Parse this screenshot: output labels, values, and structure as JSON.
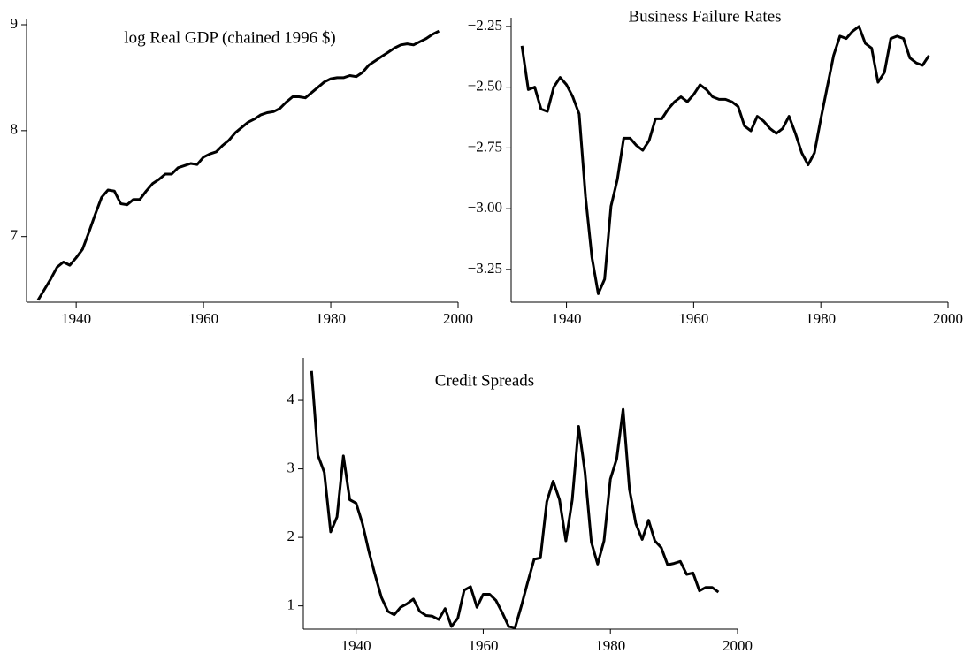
{
  "chart_data": [
    {
      "type": "line",
      "title": "log Real GDP (chained 1996 $)",
      "color": "#000000",
      "xlim": [
        1932.2,
        2000
      ],
      "ylim": [
        6.38,
        9.05
      ],
      "xticks": [
        1940,
        1960,
        1980,
        2000
      ],
      "yticks": [
        7,
        8,
        9
      ],
      "x": [
        1934,
        1935,
        1936,
        1937,
        1938,
        1939,
        1940,
        1941,
        1942,
        1943,
        1944,
        1945,
        1946,
        1947,
        1948,
        1949,
        1950,
        1951,
        1952,
        1953,
        1954,
        1955,
        1956,
        1957,
        1958,
        1959,
        1960,
        1961,
        1962,
        1963,
        1964,
        1965,
        1966,
        1967,
        1968,
        1969,
        1970,
        1971,
        1972,
        1973,
        1974,
        1975,
        1976,
        1977,
        1978,
        1979,
        1980,
        1981,
        1982,
        1983,
        1984,
        1985,
        1986,
        1987,
        1988,
        1989,
        1990,
        1991,
        1992,
        1993,
        1994,
        1995,
        1996,
        1997
      ],
      "values": [
        6.4,
        6.5,
        6.6,
        6.71,
        6.76,
        6.73,
        6.8,
        6.88,
        7.04,
        7.21,
        7.37,
        7.44,
        7.43,
        7.31,
        7.3,
        7.35,
        7.35,
        7.43,
        7.5,
        7.54,
        7.59,
        7.59,
        7.65,
        7.67,
        7.69,
        7.68,
        7.75,
        7.78,
        7.8,
        7.86,
        7.91,
        7.98,
        8.03,
        8.08,
        8.11,
        8.15,
        8.17,
        8.18,
        8.21,
        8.27,
        8.32,
        8.32,
        8.31,
        8.36,
        8.41,
        8.46,
        8.49,
        8.5,
        8.5,
        8.52,
        8.51,
        8.55,
        8.62,
        8.66,
        8.7,
        8.74,
        8.78,
        8.81,
        8.82,
        8.81,
        8.84,
        8.87,
        8.91,
        8.94
      ]
    },
    {
      "type": "line",
      "title": "Business Failure Rates",
      "color": "#000000",
      "xlim": [
        1931.3,
        2000
      ],
      "ylim": [
        -3.385,
        -2.214
      ],
      "xticks": [
        1940,
        1960,
        1980,
        2000
      ],
      "yticks": [
        {
          "value": -2.25,
          "label": "−2.25"
        },
        {
          "value": -2.5,
          "label": "−2.50"
        },
        {
          "value": -2.75,
          "label": "−2.75"
        },
        {
          "value": -3,
          "label": "−3.00"
        },
        {
          "value": -3.25,
          "label": "−3.25"
        }
      ],
      "x": [
        1933,
        1934,
        1935,
        1936,
        1937,
        1938,
        1939,
        1940,
        1941,
        1942,
        1943,
        1944,
        1945,
        1946,
        1947,
        1948,
        1949,
        1950,
        1951,
        1952,
        1953,
        1954,
        1955,
        1956,
        1957,
        1958,
        1959,
        1960,
        1961,
        1962,
        1963,
        1964,
        1965,
        1966,
        1967,
        1968,
        1969,
        1970,
        1971,
        1972,
        1973,
        1974,
        1975,
        1976,
        1977,
        1978,
        1979,
        1980,
        1981,
        1982,
        1983,
        1984,
        1985,
        1986,
        1987,
        1988,
        1989,
        1990,
        1991,
        1992,
        1993,
        1994,
        1995,
        1996,
        1997
      ],
      "values": [
        -2.33,
        -2.51,
        -2.5,
        -2.59,
        -2.6,
        -2.5,
        -2.46,
        -2.49,
        -2.54,
        -2.61,
        -2.95,
        -3.2,
        -3.35,
        -3.29,
        -2.99,
        -2.88,
        -2.71,
        -2.71,
        -2.74,
        -2.76,
        -2.72,
        -2.63,
        -2.63,
        -2.59,
        -2.56,
        -2.54,
        -2.56,
        -2.53,
        -2.49,
        -2.51,
        -2.54,
        -2.55,
        -2.55,
        -2.56,
        -2.58,
        -2.66,
        -2.68,
        -2.62,
        -2.64,
        -2.67,
        -2.69,
        -2.67,
        -2.62,
        -2.69,
        -2.77,
        -2.82,
        -2.77,
        -2.63,
        -2.5,
        -2.37,
        -2.29,
        -2.3,
        -2.27,
        -2.25,
        -2.32,
        -2.34,
        -2.48,
        -2.44,
        -2.3,
        -2.29,
        -2.3,
        -2.38,
        -2.4,
        -2.41,
        -2.37
      ]
    },
    {
      "type": "line",
      "title": "Credit Spreads",
      "color": "#000000",
      "xlim": [
        1931.7,
        2000
      ],
      "ylim": [
        0.66,
        4.62
      ],
      "xticks": [
        1940,
        1960,
        1980,
        2000
      ],
      "yticks": [
        1,
        2,
        3,
        4
      ],
      "x": [
        1933,
        1934,
        1935,
        1936,
        1937,
        1938,
        1939,
        1940,
        1941,
        1942,
        1943,
        1944,
        1945,
        1946,
        1947,
        1948,
        1949,
        1950,
        1951,
        1952,
        1953,
        1954,
        1955,
        1956,
        1957,
        1958,
        1959,
        1960,
        1961,
        1962,
        1963,
        1964,
        1965,
        1966,
        1967,
        1968,
        1969,
        1970,
        1971,
        1972,
        1973,
        1974,
        1975,
        1976,
        1977,
        1978,
        1979,
        1980,
        1981,
        1982,
        1983,
        1984,
        1985,
        1986,
        1987,
        1988,
        1989,
        1990,
        1991,
        1992,
        1993,
        1994,
        1995,
        1996,
        1997
      ],
      "values": [
        4.43,
        3.2,
        2.95,
        2.08,
        2.3,
        3.19,
        2.55,
        2.5,
        2.2,
        1.8,
        1.45,
        1.12,
        0.92,
        0.87,
        0.98,
        1.03,
        1.1,
        0.92,
        0.86,
        0.85,
        0.8,
        0.96,
        0.7,
        0.82,
        1.23,
        1.28,
        0.98,
        1.17,
        1.17,
        1.08,
        0.9,
        0.7,
        0.68,
        1.0,
        1.35,
        1.68,
        1.7,
        2.52,
        2.82,
        2.55,
        1.95,
        2.55,
        3.62,
        2.95,
        1.93,
        1.61,
        1.95,
        2.85,
        3.15,
        3.87,
        2.7,
        2.2,
        1.97,
        2.25,
        1.95,
        1.85,
        1.6,
        1.62,
        1.65,
        1.46,
        1.48,
        1.22,
        1.27,
        1.27,
        1.2
      ]
    }
  ]
}
